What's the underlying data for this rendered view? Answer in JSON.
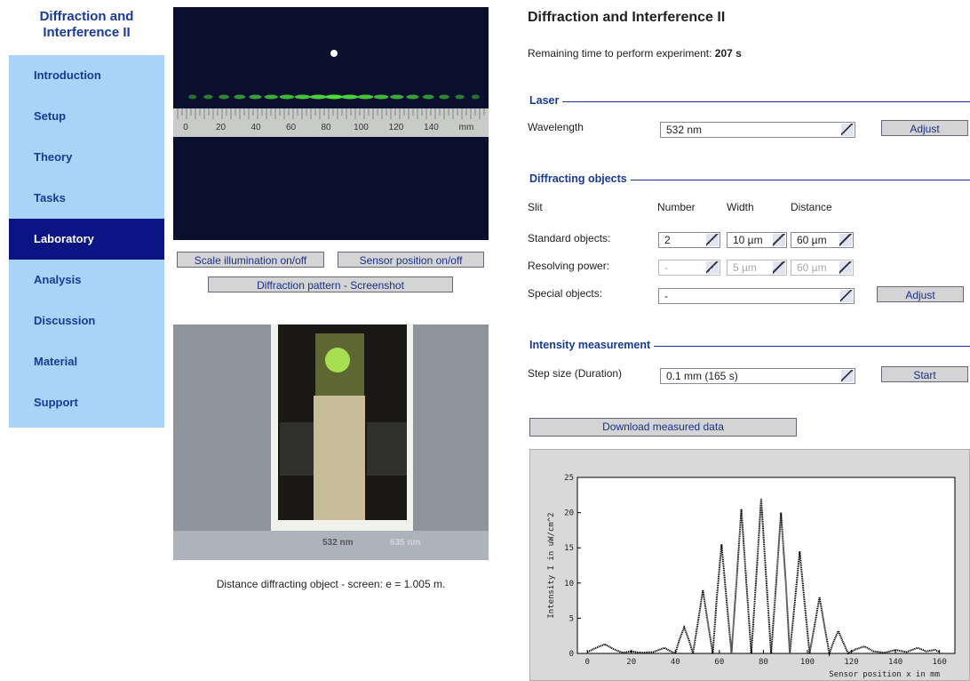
{
  "nav": {
    "title": "Diffraction and Interference II",
    "items": [
      {
        "label": "Introduction"
      },
      {
        "label": "Setup"
      },
      {
        "label": "Theory"
      },
      {
        "label": "Tasks"
      },
      {
        "label": "Laboratory",
        "active": true
      },
      {
        "label": "Analysis"
      },
      {
        "label": "Discussion"
      },
      {
        "label": "Material"
      },
      {
        "label": "Support"
      }
    ]
  },
  "image": {
    "ruler_labels": [
      "0",
      "20",
      "40",
      "60",
      "80",
      "100",
      "120",
      "140",
      "mm"
    ],
    "filter_labels": [
      "532 nm",
      "635 nm"
    ]
  },
  "buttons": [
    "Scale illumination on/off",
    "Sensor position on/off",
    "Diffraction pattern - Screenshot"
  ],
  "caption": "Distance diffracting object - screen: e = 1.005 m.",
  "panel": {
    "title": "Diffraction and Interference II",
    "remaining_label": "Remaining time to perform experiment:",
    "remaining_value": "207 s",
    "laser": {
      "legend": "Laser",
      "wavelength_label": "Wavelength",
      "wavelength": "532 nm",
      "button": "Adjust"
    },
    "objects": {
      "legend": "Diffracting objects",
      "headers": [
        "Slit",
        "Number",
        "Width",
        "Distance"
      ],
      "standard": {
        "label": "Standard objects:",
        "number": "2",
        "width": "10 µm",
        "distance": "60 µm"
      },
      "resolving": {
        "label": "Resolving power:",
        "number": "-",
        "width": "5 µm",
        "distance": "60 µm"
      },
      "special": {
        "label": "Special objects:",
        "value": "-",
        "button": "Adjust"
      }
    },
    "intensity": {
      "legend": "Intensity measurement",
      "step_label": "Step size (Duration)",
      "step": "0.1 mm (165 s)",
      "button": "Start"
    },
    "download": "Download measured data"
  },
  "chart": {
    "type": "line",
    "x_label": "Sensor position x in mm",
    "y_label": "Intensity I in uW/cm^2",
    "color": "#000000",
    "xlim": [
      -4.5,
      167
    ],
    "ylim": [
      0,
      25
    ],
    "xticks": [
      0,
      20,
      40,
      60,
      80,
      100,
      120,
      140,
      160
    ],
    "yticks": [
      0,
      5,
      10,
      15,
      20,
      25
    ],
    "x": [
      0,
      4,
      8,
      12,
      16,
      20,
      24,
      30,
      35,
      38,
      40,
      41.8,
      44,
      46.2,
      48,
      50.3,
      52.5,
      54.7,
      57,
      58.8,
      61,
      63.2,
      65.5,
      67.8,
      70,
      72.2,
      74.5,
      76.8,
      79,
      81.2,
      83.5,
      85.8,
      88,
      90.2,
      92,
      94.3,
      96.5,
      98.7,
      101,
      103.3,
      105.5,
      107.7,
      110,
      111.8,
      114,
      116.2,
      118.5,
      122,
      126,
      130,
      135,
      140,
      145,
      150,
      154,
      158,
      160
    ],
    "values": [
      0.2,
      0.8,
      1.3,
      0.6,
      0.1,
      0.3,
      0.1,
      0.2,
      0.8,
      0.3,
      0,
      1.9,
      3.7,
      1.9,
      0,
      4.5,
      9,
      4.5,
      0,
      7.8,
      15.5,
      7.8,
      0,
      10.3,
      20.5,
      10.3,
      0,
      11,
      22,
      11,
      0,
      10,
      20,
      10,
      0,
      7.3,
      14.5,
      7.3,
      0,
      4,
      8,
      4,
      0,
      1.6,
      3.2,
      1.6,
      0,
      0.6,
      1.0,
      0.3,
      0.1,
      0.5,
      0.2,
      0.8,
      0.3,
      0.5,
      0.2
    ]
  }
}
